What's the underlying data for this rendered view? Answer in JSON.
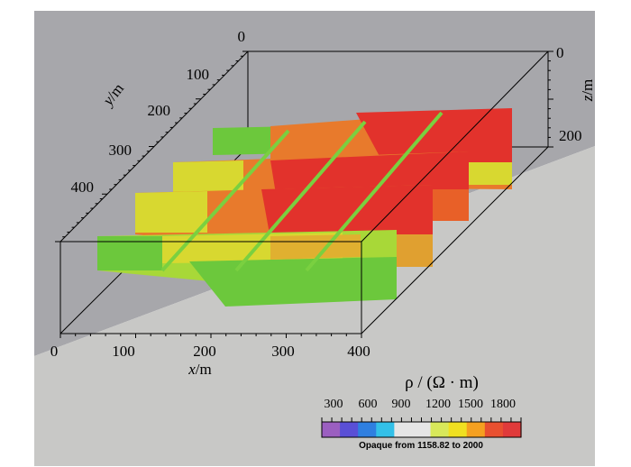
{
  "figure": {
    "x_axis": {
      "label_var": "x",
      "label_unit": "/m",
      "ticks": [
        "0",
        "100",
        "200",
        "300",
        "400"
      ]
    },
    "y_axis": {
      "label_var": "y",
      "label_unit": "/m",
      "ticks": [
        "0",
        "100",
        "200",
        "300",
        "400"
      ]
    },
    "z_axis": {
      "label_var": "z",
      "label_unit": "/m",
      "ticks": [
        "0",
        "200"
      ]
    }
  },
  "legend": {
    "title": "ρ / (Ω · m)",
    "ticks": [
      "300",
      "600",
      "900",
      "1200",
      "1500",
      "1800"
    ],
    "caption": "Opaque from 1158.82 to 2000",
    "colors": [
      "#9b5fc0",
      "#5a4fd6",
      "#2f7fe0",
      "#33c0e8",
      "#e6e6e6",
      "#e6e6e6",
      "#d8e85a",
      "#f0e020",
      "#f5a020",
      "#e85030",
      "#e03a3a"
    ]
  },
  "colors": {
    "upper_background": "#a7a7ab",
    "floor": "#c8c8c6",
    "high": "#e2322c",
    "orange": "#e87a2c",
    "yellow": "#d8d830",
    "green": "#6cc83c"
  }
}
